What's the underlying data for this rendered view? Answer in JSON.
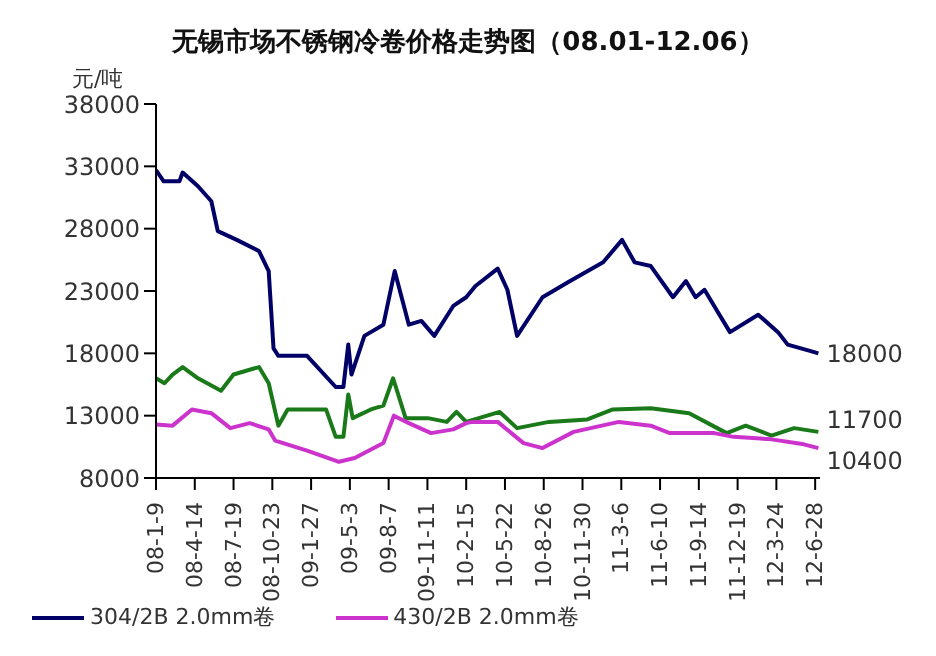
{
  "chart_data": {
    "type": "line",
    "title": "无锡市场不锈钢冷卷价格走势图（08.01-12.06）",
    "ylabel": "元/吨",
    "marker": "none",
    "legend": "bottom left",
    "xlim": [
      "2008-01-09",
      "2012-07-10"
    ],
    "xticks": [
      {
        "value": "2008-01-09",
        "label": "08-1-9"
      },
      {
        "value": "2008-04-14",
        "label": "08-4-14"
      },
      {
        "value": "2008-07-19",
        "label": "08-7-19"
      },
      {
        "value": "2008-10-23",
        "label": "08-10-23"
      },
      {
        "value": "2009-01-27",
        "label": "09-1-27"
      },
      {
        "value": "2009-05-03",
        "label": "09-5-3"
      },
      {
        "value": "2009-08-07",
        "label": "09-8-7"
      },
      {
        "value": "2009-11-11",
        "label": "09-11-11"
      },
      {
        "value": "2010-02-15",
        "label": "10-2-15"
      },
      {
        "value": "2010-05-22",
        "label": "10-5-22"
      },
      {
        "value": "2010-08-26",
        "label": "10-8-26"
      },
      {
        "value": "2010-11-30",
        "label": "10-11-30"
      },
      {
        "value": "2011-03-06",
        "label": "11-3-6"
      },
      {
        "value": "2011-06-10",
        "label": "11-6-10"
      },
      {
        "value": "2011-09-14",
        "label": "11-9-14"
      },
      {
        "value": "2011-12-19",
        "label": "11-12-19"
      },
      {
        "value": "2012-03-24",
        "label": "12-3-24"
      },
      {
        "value": "2012-06-28",
        "label": "12-6-28"
      }
    ],
    "ylim": [
      8000,
      38000
    ],
    "yticks": [
      8000,
      13000,
      18000,
      23000,
      28000,
      33000,
      38000
    ],
    "series": [
      {
        "name": "304/2B 2.0mm卷",
        "color": "#000066",
        "x": [
          "2008-01-09",
          "2008-01-28",
          "2008-03-07",
          "2008-03-15",
          "2008-04-22",
          "2008-05-25",
          "2008-06-10",
          "2008-07-27",
          "2008-09-20",
          "2008-10-14",
          "2008-10-26",
          "2008-11-07",
          "2009-01-17",
          "2009-03-29",
          "2009-04-17",
          "2009-04-29",
          "2009-05-07",
          "2009-06-08",
          "2009-07-25",
          "2009-08-22",
          "2009-09-26",
          "2009-10-27",
          "2009-11-28",
          "2010-01-14",
          "2010-02-15",
          "2010-03-10",
          "2010-05-04",
          "2010-05-28",
          "2010-06-21",
          "2010-08-23",
          "2010-10-25",
          "2011-01-20",
          "2011-03-08",
          "2011-04-08",
          "2011-05-18",
          "2011-07-12",
          "2011-08-13",
          "2011-09-06",
          "2011-09-28",
          "2011-10-22",
          "2011-11-30",
          "2012-02-08",
          "2012-03-28",
          "2012-04-21",
          "2012-06-15",
          "2012-07-06"
        ],
        "values": [
          32700,
          31800,
          31800,
          32500,
          31400,
          30200,
          27800,
          27100,
          26200,
          24600,
          18400,
          17800,
          17800,
          15300,
          15300,
          18700,
          16300,
          19400,
          20300,
          24600,
          20300,
          20600,
          19400,
          21800,
          22500,
          23400,
          24800,
          23100,
          19400,
          22500,
          23700,
          25300,
          27100,
          25300,
          25000,
          22500,
          23800,
          22500,
          23100,
          21800,
          19700,
          21100,
          19700,
          18700,
          18200,
          18000
        ]
      },
      {
        "color": "#1a7a1a",
        "x": [
          "2008-01-09",
          "2008-01-30",
          "2008-02-19",
          "2008-03-15",
          "2008-04-22",
          "2008-06-18",
          "2008-07-19",
          "2008-09-20",
          "2008-10-14",
          "2008-11-07",
          "2008-11-30",
          "2009-03-05",
          "2009-03-29",
          "2009-04-17",
          "2009-04-29",
          "2009-05-10",
          "2009-06-24",
          "2009-07-25",
          "2009-08-18",
          "2009-09-18",
          "2009-11-12",
          "2009-12-29",
          "2010-01-22",
          "2010-02-15",
          "2010-05-09",
          "2010-06-21",
          "2010-09-08",
          "2010-12-12",
          "2011-02-13",
          "2011-05-18",
          "2011-08-21",
          "2011-11-22",
          "2012-01-08",
          "2012-03-12",
          "2012-05-07",
          "2012-07-06"
        ],
        "values": [
          16000,
          15600,
          16300,
          16900,
          16000,
          15000,
          16300,
          16900,
          15600,
          12200,
          13500,
          13500,
          11300,
          11300,
          14700,
          12800,
          13500,
          13800,
          16000,
          12800,
          12800,
          12500,
          13300,
          12500,
          13300,
          12000,
          12500,
          12700,
          13500,
          13600,
          13200,
          11600,
          12200,
          11400,
          12000,
          11700
        ]
      },
      {
        "name": "430/2B 2.0mm卷",
        "color": "#cc33cc",
        "x": [
          "2008-01-09",
          "2008-02-19",
          "2008-04-07",
          "2008-05-25",
          "2008-07-11",
          "2008-08-28",
          "2008-10-14",
          "2008-10-30",
          "2009-01-17",
          "2009-04-06",
          "2009-05-15",
          "2009-07-25",
          "2009-08-20",
          "2009-09-26",
          "2009-11-20",
          "2010-01-14",
          "2010-02-15",
          "2010-03-03",
          "2010-05-04",
          "2010-07-07",
          "2010-08-23",
          "2010-11-08",
          "2011-02-28",
          "2011-05-18",
          "2011-07-04",
          "2011-10-22",
          "2011-12-09",
          "2012-03-12",
          "2012-05-31",
          "2012-07-06"
        ],
        "values": [
          12300,
          12200,
          13500,
          13200,
          12000,
          12400,
          11900,
          11000,
          10200,
          9300,
          9600,
          10800,
          13000,
          12400,
          11600,
          11900,
          12400,
          12500,
          12500,
          10800,
          10400,
          11700,
          12500,
          12200,
          11600,
          11600,
          11300,
          11100,
          10700,
          10400
        ]
      }
    ],
    "annotations": [
      {
        "text": "18000",
        "x": "2012-07-06",
        "y": 18000
      },
      {
        "text": "11700",
        "x": "2012-07-06",
        "y": 11700
      },
      {
        "text": "10400",
        "x": "2012-07-06",
        "y": 10400
      }
    ]
  }
}
